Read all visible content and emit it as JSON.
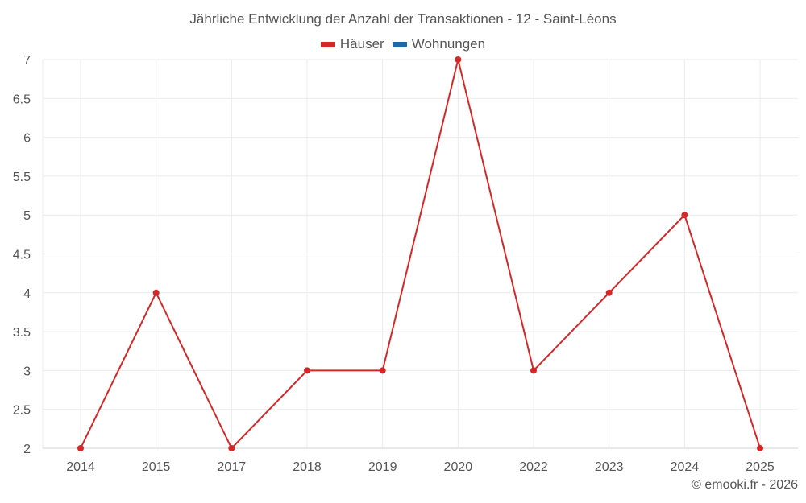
{
  "chart_data": {
    "type": "line",
    "title": "Jährliche Entwicklung der Anzahl der Transaktionen - 12 - Saint-Léons",
    "categories": [
      "2014",
      "2015",
      "2017",
      "2018",
      "2019",
      "2020",
      "2022",
      "2023",
      "2024",
      "2025"
    ],
    "series": [
      {
        "name": "Häuser",
        "color": "#d62728",
        "values": [
          2,
          4,
          2,
          3,
          3,
          7,
          3,
          4,
          5,
          2
        ]
      },
      {
        "name": "Wohnungen",
        "color": "#1f6aa5",
        "values": []
      }
    ],
    "xlabel": "",
    "ylabel": "",
    "ylim": [
      2,
      7
    ],
    "yticks": [
      "2",
      "2.5",
      "3",
      "3.5",
      "4",
      "4.5",
      "5",
      "5.5",
      "6",
      "6.5",
      "7"
    ],
    "grid": true,
    "legend_position": "top"
  },
  "title": "Jährliche Entwicklung der Anzahl der Transaktionen - 12 - Saint-Léons",
  "legend": [
    {
      "label": "Häuser",
      "color": "#d62728"
    },
    {
      "label": "Wohnungen",
      "color": "#1f6aa5"
    }
  ],
  "credit": "© emooki.fr - 2026"
}
